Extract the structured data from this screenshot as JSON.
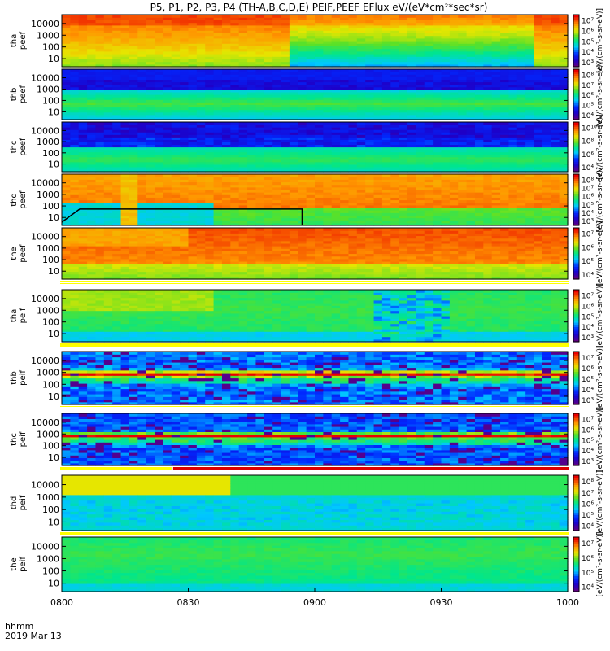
{
  "chart_data": {
    "type": "heatmap",
    "title": "P5, P1, P2, P3, P4 (TH-A,B,C,D,E) PEIF,PEEF EFlux eV/(eV*cm²*sec*sr)",
    "x_ticks": [
      "0800",
      "0830",
      "0900",
      "0930",
      "1000"
    ],
    "x_range": [
      "08:00",
      "10:00"
    ],
    "x_axis_label_1": "hhmm",
    "x_axis_label_2": "2019 Mar 13",
    "colorbar_unit": "[eV/(cm²-s-sr-eV)]",
    "panels": [
      {
        "probe": "tha",
        "species": "peef",
        "y_ticks": [
          "10000",
          "1000",
          "100",
          "10"
        ],
        "cbar_ticks": [
          "10⁷",
          "10⁶",
          "10⁵",
          "10⁴",
          "10³"
        ],
        "pattern": "tha_e",
        "status_bar": null
      },
      {
        "probe": "thb",
        "species": "peef",
        "y_ticks": [
          "10000",
          "1000",
          "100",
          "10"
        ],
        "cbar_ticks": [
          "10⁸",
          "10⁷",
          "10⁶",
          "10⁵",
          "10⁴"
        ],
        "pattern": "thb_e",
        "status_bar": null
      },
      {
        "probe": "thc",
        "species": "peef",
        "y_ticks": [
          "10000",
          "1000",
          "100",
          "10"
        ],
        "cbar_ticks": [
          "10¹⁰",
          "10⁸",
          "10⁶",
          "10⁴"
        ],
        "pattern": "thc_e",
        "status_bar": null
      },
      {
        "probe": "thd",
        "species": "peef",
        "y_ticks": [
          "10000",
          "1000",
          "100",
          "10"
        ],
        "cbar_ticks": [
          "10⁸",
          "10⁷",
          "10⁶",
          "10⁵",
          "10⁴",
          "10³"
        ],
        "pattern": "thd_e",
        "status_bar": null
      },
      {
        "probe": "the",
        "species": "peef",
        "y_ticks": [
          "10000",
          "1000",
          "100",
          "10"
        ],
        "cbar_ticks": [
          "10⁷",
          "10⁶",
          "10⁵",
          "10⁴"
        ],
        "pattern": "the_e",
        "status_bar": "white"
      },
      {
        "probe": "tha",
        "species": "peif",
        "y_ticks": [
          "10000",
          "1000",
          "100",
          "10"
        ],
        "cbar_ticks": [
          "10⁷",
          "10⁶",
          "10⁵",
          "10⁴",
          "10³"
        ],
        "pattern": "tha_i",
        "status_bar": "yellow"
      },
      {
        "probe": "thb",
        "species": "peif",
        "y_ticks": [
          "10000",
          "1000",
          "100",
          "10"
        ],
        "cbar_ticks": [
          "10⁷",
          "10⁶",
          "10⁵",
          "10⁴",
          "10³"
        ],
        "pattern": "thb_i",
        "status_bar": "white"
      },
      {
        "probe": "thc",
        "species": "peif",
        "y_ticks": [
          "10000",
          "1000",
          "100",
          "10"
        ],
        "cbar_ticks": [
          "10⁷",
          "10⁶",
          "10⁵",
          "10⁴",
          "10³"
        ],
        "pattern": "thc_i",
        "status_bar": "redsplit"
      },
      {
        "probe": "thd",
        "species": "peif",
        "y_ticks": [
          "10000",
          "1000",
          "100",
          "10"
        ],
        "cbar_ticks": [
          "10⁸",
          "10⁷",
          "10⁶",
          "10⁵",
          "10⁴"
        ],
        "pattern": "thd_i",
        "status_bar": "yellow"
      },
      {
        "probe": "the",
        "species": "peif",
        "y_ticks": [
          "10000",
          "1000",
          "100",
          "10"
        ],
        "cbar_ticks": [
          "10⁷",
          "10⁶",
          "10⁵",
          "10⁴"
        ],
        "pattern": "the_i",
        "status_bar": null
      }
    ]
  }
}
